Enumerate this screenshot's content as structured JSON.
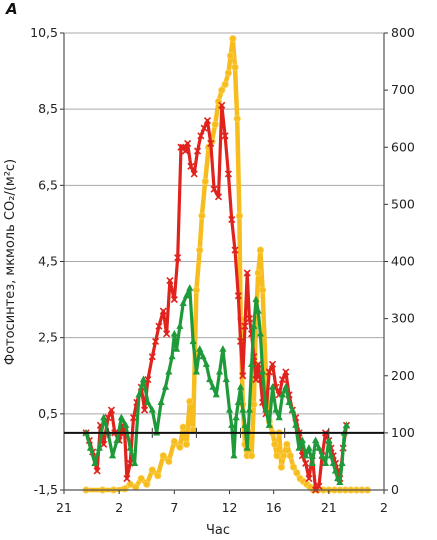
{
  "chart_data": {
    "type": "line",
    "panel_label": "А",
    "xlabel": "Час",
    "ylabel": "Фотосинтез, мкмоль CO₂/(м²с)",
    "x_tick_labels": [
      "21",
      "2",
      "7",
      "12",
      "16",
      "21",
      "2"
    ],
    "y_left_ticks": [
      "-1,5",
      "0,5",
      "2,5",
      "4,5",
      "6,5",
      "8,5",
      "10,5"
    ],
    "y_right_ticks": [
      "0",
      "100",
      "200",
      "300",
      "400",
      "500",
      "600",
      "700",
      "800"
    ],
    "xlim": [
      21,
      50
    ],
    "ylim_left": [
      -1.5,
      10.5
    ],
    "ylim_right": [
      0,
      800
    ],
    "grid": true,
    "reference_line": {
      "axis": "right",
      "value": 100
    },
    "colors": {
      "yellow": "#f7bc1d",
      "red": "#e1231d",
      "green": "#1f9a3a"
    },
    "series": [
      {
        "axis": "right",
        "color": "yellow",
        "marker": "circle",
        "x": [
          23.0,
          24.5,
          25.5,
          26.5,
          27.0,
          27.5,
          28.0,
          28.5,
          29.0,
          29.5,
          30.0,
          30.5,
          31.0,
          31.5,
          31.8,
          32.1,
          32.4,
          32.7,
          33.0,
          33.3,
          33.5,
          33.8,
          34.1,
          34.4,
          34.7,
          35.0,
          35.3,
          35.6,
          35.9,
          36.1,
          36.3,
          36.5,
          36.7,
          36.9,
          37.0,
          37.2,
          37.4,
          37.6,
          37.8,
          38.0,
          38.2,
          38.4,
          38.6,
          38.8,
          39.0,
          39.3,
          39.6,
          39.9,
          40.1,
          40.3,
          40.5,
          40.7,
          40.9,
          41.2,
          41.5,
          41.8,
          42.1,
          42.4,
          42.7,
          43.0,
          43.3,
          43.6,
          44.0,
          44.5,
          45.0,
          45.5,
          46.0,
          46.5,
          47.0,
          47.5,
          48.0,
          48.5
        ],
        "y": [
          0,
          0,
          0,
          2,
          10,
          5,
          20,
          10,
          35,
          25,
          60,
          50,
          85,
          75,
          110,
          80,
          155,
          105,
          350,
          420,
          480,
          540,
          600,
          610,
          640,
          680,
          700,
          710,
          730,
          760,
          790,
          740,
          650,
          480,
          300,
          150,
          80,
          60,
          100,
          60,
          150,
          300,
          380,
          420,
          350,
          200,
          120,
          100,
          80,
          60,
          100,
          40,
          60,
          80,
          60,
          40,
          30,
          20,
          15,
          10,
          5,
          0,
          0,
          0,
          0,
          0,
          0,
          0,
          0,
          0,
          0,
          0
        ]
      },
      {
        "axis": "left",
        "color": "red",
        "marker": "x",
        "x": [
          23.0,
          23.3,
          23.6,
          24.0,
          24.3,
          24.6,
          25.0,
          25.3,
          25.6,
          26.0,
          26.3,
          26.5,
          26.7,
          27.0,
          27.3,
          27.6,
          28.0,
          28.3,
          28.6,
          29.0,
          29.3,
          29.6,
          30.0,
          30.3,
          30.6,
          31.0,
          31.3,
          31.6,
          31.8,
          32.0,
          32.2,
          32.5,
          32.8,
          33.1,
          33.4,
          33.7,
          34.0,
          34.3,
          34.6,
          35.0,
          35.3,
          35.6,
          35.9,
          36.2,
          36.5,
          36.8,
          37.0,
          37.2,
          37.4,
          37.6,
          37.8,
          38.0,
          38.2,
          38.4,
          38.6,
          38.8,
          39.0,
          39.3,
          39.6,
          39.9,
          40.2,
          40.5,
          40.8,
          41.1,
          41.4,
          41.7,
          42.0,
          42.3,
          42.6,
          42.9,
          43.2,
          43.5,
          43.8,
          44.1,
          44.4,
          44.7,
          45.0,
          45.2,
          45.4,
          45.6,
          45.8,
          46.0,
          46.3,
          46.6
        ],
        "y": [
          0,
          -0.2,
          -0.5,
          -1.0,
          0.2,
          -0.3,
          0.4,
          0.6,
          0.0,
          -0.2,
          0.2,
          0.0,
          -1.2,
          -0.8,
          0.4,
          0.8,
          1.2,
          0.6,
          1.4,
          2.0,
          2.4,
          2.8,
          3.2,
          2.6,
          4.0,
          3.5,
          4.6,
          7.5,
          7.5,
          7.4,
          7.6,
          7.0,
          6.8,
          7.4,
          7.8,
          8.0,
          8.2,
          7.6,
          6.4,
          6.2,
          8.6,
          7.8,
          6.8,
          5.6,
          4.8,
          3.6,
          2.4,
          1.5,
          2.8,
          4.2,
          3.0,
          2.6,
          2.0,
          1.4,
          1.8,
          1.4,
          0.8,
          0.5,
          1.6,
          1.8,
          1.2,
          1.0,
          1.4,
          1.6,
          1.0,
          0.6,
          0.4,
          0.0,
          -0.6,
          -0.8,
          -1.2,
          -0.6,
          -1.5,
          -1.4,
          -0.6,
          0.0,
          -0.2,
          -0.4,
          -0.6,
          -0.8,
          -1.0,
          -1.2,
          -0.4,
          0.2
        ]
      },
      {
        "axis": "left",
        "color": "green",
        "marker": "triangle",
        "x": [
          23.0,
          23.4,
          23.8,
          24.2,
          24.6,
          25.0,
          25.4,
          25.8,
          26.2,
          26.6,
          27.0,
          27.4,
          27.8,
          28.2,
          28.6,
          29.0,
          29.4,
          29.8,
          30.2,
          30.5,
          30.8,
          31.0,
          31.2,
          31.5,
          31.8,
          32.1,
          32.4,
          32.7,
          33.0,
          33.3,
          33.6,
          33.9,
          34.2,
          34.5,
          34.8,
          35.1,
          35.4,
          35.7,
          36.0,
          36.2,
          36.4,
          36.6,
          36.8,
          37.0,
          37.2,
          37.4,
          37.6,
          37.8,
          38.0,
          38.2,
          38.4,
          38.6,
          38.8,
          39.0,
          39.3,
          39.6,
          39.9,
          40.2,
          40.5,
          40.8,
          41.1,
          41.4,
          41.7,
          42.0,
          42.3,
          42.6,
          42.9,
          43.2,
          43.5,
          43.8,
          44.1,
          44.4,
          44.7,
          45.0,
          45.2,
          45.4,
          45.6,
          45.8,
          46.0,
          46.2,
          46.4,
          46.6
        ],
        "y": [
          0,
          -0.4,
          -0.8,
          -0.4,
          0.4,
          0.0,
          -0.6,
          -0.2,
          0.4,
          0.2,
          -0.4,
          -0.8,
          1.0,
          1.4,
          0.8,
          0.6,
          0.0,
          0.8,
          1.2,
          1.6,
          2.0,
          2.6,
          2.2,
          2.8,
          3.4,
          3.6,
          3.8,
          2.4,
          1.6,
          2.2,
          2.0,
          1.8,
          1.4,
          1.2,
          1.0,
          1.6,
          2.2,
          1.4,
          0.6,
          0.2,
          -0.6,
          0.4,
          0.8,
          1.2,
          0.6,
          0.2,
          -0.4,
          0.6,
          1.8,
          2.8,
          3.5,
          3.2,
          2.6,
          1.6,
          0.6,
          0.2,
          1.2,
          0.6,
          0.4,
          1.0,
          1.2,
          0.8,
          0.6,
          0.2,
          -0.4,
          -0.2,
          -0.6,
          -0.4,
          -0.8,
          -0.2,
          -0.4,
          -0.6,
          -0.8,
          -0.2,
          -0.6,
          -0.8,
          -1.0,
          -1.2,
          -1.3,
          -0.8,
          0.0,
          0.2
        ]
      }
    ]
  }
}
